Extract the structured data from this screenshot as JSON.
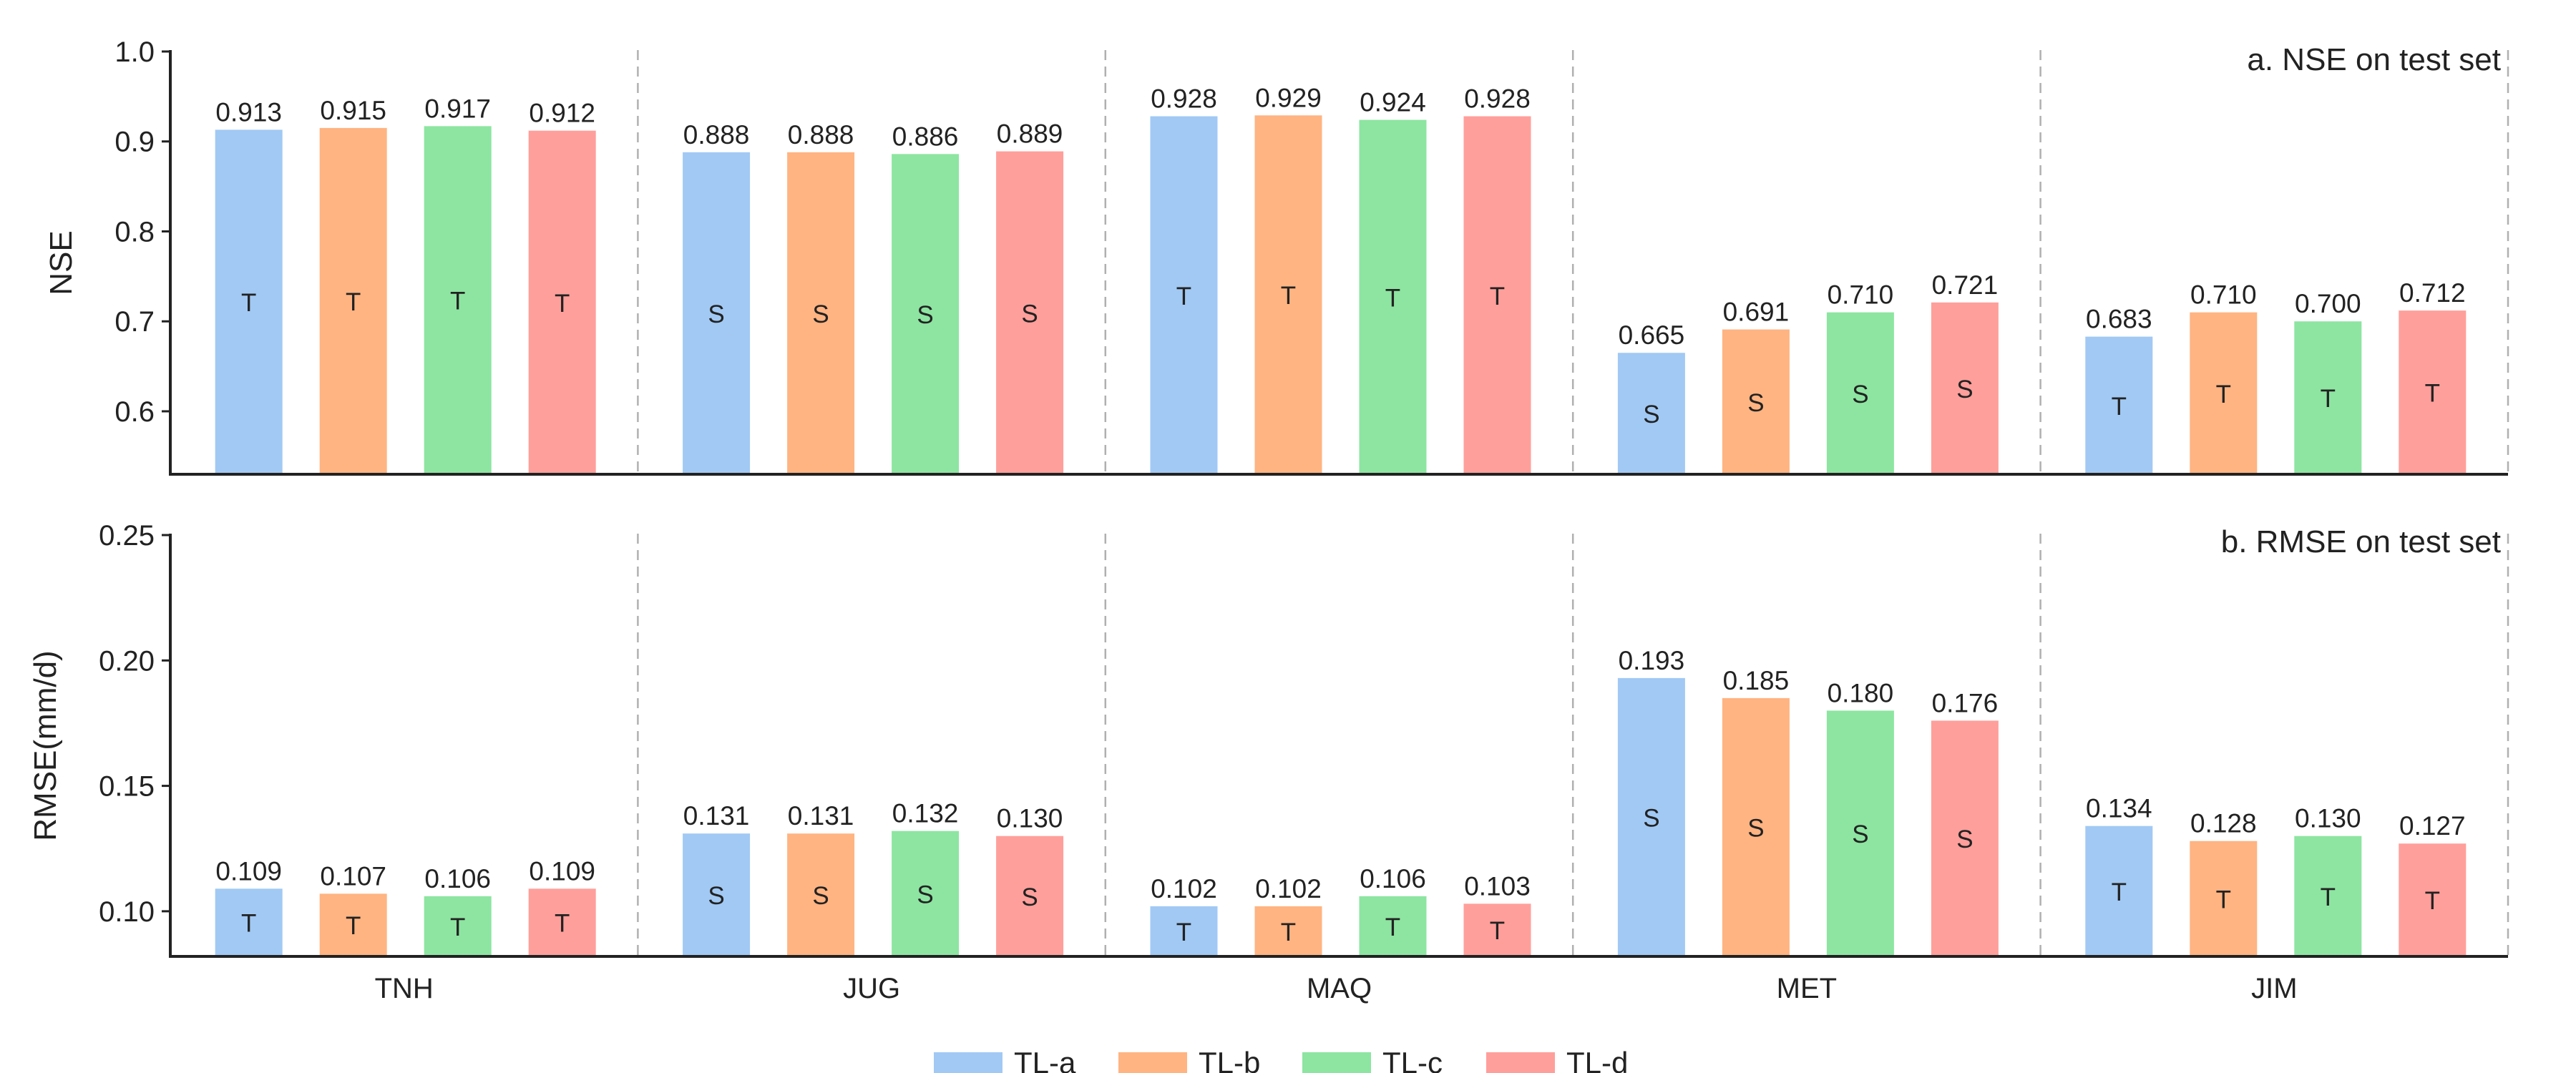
{
  "chart_data": [
    {
      "type": "bar",
      "title": "a. NSE on test set",
      "ylabel": "NSE",
      "ylim": [
        0.53,
        1.0
      ],
      "yticks": [
        "0.6",
        "0.7",
        "0.8",
        "0.9",
        "1.0"
      ],
      "categories": [
        "TNH",
        "JUG",
        "MAQ",
        "MET",
        "JIM"
      ],
      "series": [
        {
          "name": "TL-a",
          "values": [
            0.913,
            0.888,
            0.928,
            0.665,
            0.683
          ],
          "labels": [
            "0.913",
            "0.888",
            "0.928",
            "0.665",
            "0.683"
          ]
        },
        {
          "name": "TL-b",
          "values": [
            0.915,
            0.888,
            0.929,
            0.691,
            0.71
          ],
          "labels": [
            "0.915",
            "0.888",
            "0.929",
            "0.691",
            "0.710"
          ]
        },
        {
          "name": "TL-c",
          "values": [
            0.917,
            0.886,
            0.924,
            0.71,
            0.7
          ],
          "labels": [
            "0.917",
            "0.886",
            "0.924",
            "0.710",
            "0.700"
          ]
        },
        {
          "name": "TL-d",
          "values": [
            0.912,
            0.889,
            0.928,
            0.721,
            0.712
          ],
          "labels": [
            "0.912",
            "0.889",
            "0.928",
            "0.721",
            "0.712"
          ]
        }
      ],
      "group_marks": [
        "T",
        "S",
        "T",
        "S",
        "T"
      ]
    },
    {
      "type": "bar",
      "title": "b. RMSE on test set",
      "ylabel": "RMSE(mm/d)",
      "ylim": [
        0.082,
        0.25
      ],
      "yticks": [
        "0.10",
        "0.15",
        "0.20",
        "0.25"
      ],
      "categories": [
        "TNH",
        "JUG",
        "MAQ",
        "MET",
        "JIM"
      ],
      "series": [
        {
          "name": "TL-a",
          "values": [
            0.109,
            0.131,
            0.102,
            0.193,
            0.134
          ],
          "labels": [
            "0.109",
            "0.131",
            "0.102",
            "0.193",
            "0.134"
          ]
        },
        {
          "name": "TL-b",
          "values": [
            0.107,
            0.131,
            0.102,
            0.185,
            0.128
          ],
          "labels": [
            "0.107",
            "0.131",
            "0.102",
            "0.185",
            "0.128"
          ]
        },
        {
          "name": "TL-c",
          "values": [
            0.106,
            0.132,
            0.106,
            0.18,
            0.13
          ],
          "labels": [
            "0.106",
            "0.132",
            "0.106",
            "0.180",
            "0.130"
          ]
        },
        {
          "name": "TL-d",
          "values": [
            0.109,
            0.13,
            0.103,
            0.176,
            0.127
          ],
          "labels": [
            "0.109",
            "0.130",
            "0.103",
            "0.176",
            "0.127"
          ]
        }
      ],
      "group_marks": [
        "T",
        "S",
        "T",
        "S",
        "T"
      ]
    }
  ],
  "legend": {
    "placement": "bottom-center",
    "items": [
      "TL-a",
      "TL-b",
      "TL-c",
      "TL-d"
    ]
  },
  "colors": {
    "TL-a": "#a1c9f4",
    "TL-b": "#ffb482",
    "TL-c": "#8de5a1",
    "TL-d": "#ff9f9b",
    "axis": "#222222",
    "separator": "#b0b0b0"
  }
}
